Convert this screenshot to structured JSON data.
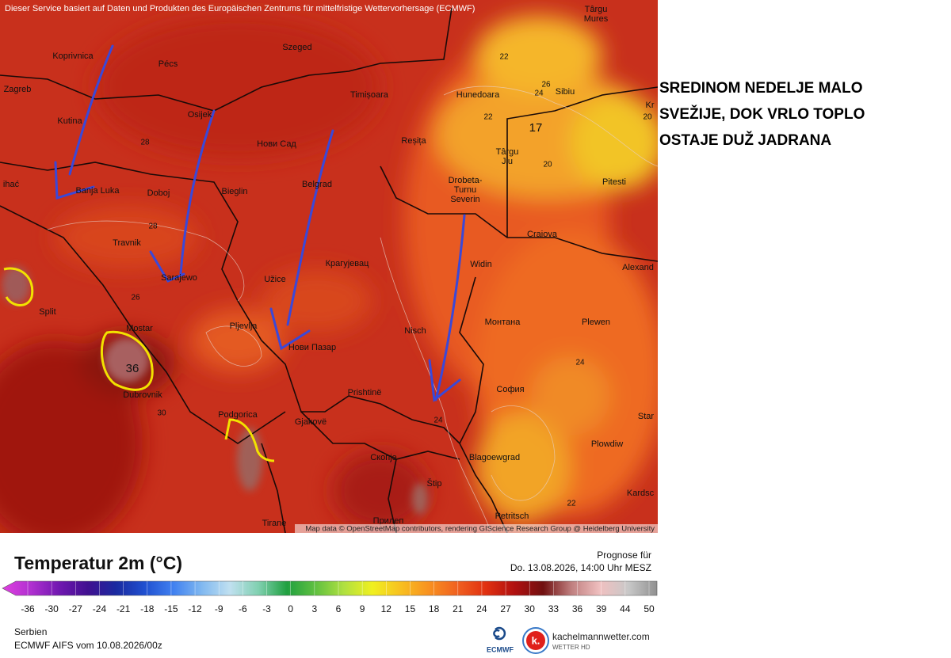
{
  "map": {
    "notice": "Dieser Service basiert auf Daten und Produkten des Europäischen Zentrums für mittelfristige Wettervorhersage (ECMWF)",
    "attribution": "Map data © OpenStreetMap contributors, rendering GIScience Research Group @ Heidelberg University",
    "cities": [
      [
        "Târgu",
        "Mures"
      ],
      [
        "Koprivnica"
      ],
      [
        "Pécs"
      ],
      [
        "Szeged"
      ],
      [
        "Zagreb"
      ],
      [
        "Timișoara"
      ],
      [
        "Hunedoara"
      ],
      [
        "Sibiu"
      ],
      [
        "Kr"
      ],
      [
        "Osijek"
      ],
      [
        "Kutina"
      ],
      [
        "Нови Сад"
      ],
      [
        "Reșița"
      ],
      [
        "Târgu",
        "Jiu"
      ],
      [
        "ihać"
      ],
      [
        "Banja Luka"
      ],
      [
        "Doboj"
      ],
      [
        "Bieglin"
      ],
      [
        "Belgrad"
      ],
      [
        "Drobeta-",
        "Turnu",
        "Severin"
      ],
      [
        "Pitesti"
      ],
      [
        "Craiova"
      ],
      [
        "Travnik"
      ],
      [
        "Sarajewo"
      ],
      [
        "Крагујевац"
      ],
      [
        "Widin"
      ],
      [
        "Alexand"
      ],
      [
        "Užice"
      ],
      [
        "Split"
      ],
      [
        "Mostar"
      ],
      [
        "Pljevlja"
      ],
      [
        "Nisch"
      ],
      [
        "Монтана"
      ],
      [
        "Plewen"
      ],
      [
        "Нови Пазар"
      ],
      [
        "Dubrovnik"
      ],
      [
        "София"
      ],
      [
        "Podgorica"
      ],
      [
        "Prishtinë"
      ],
      [
        "Gjakovë"
      ],
      [
        "Star"
      ],
      [
        "Plowdiw"
      ],
      [
        "Скопје"
      ],
      [
        "Blagoewgrad"
      ],
      [
        "Štip"
      ],
      [
        "Kardsc"
      ],
      [
        "Tirane"
      ],
      [
        "Прилеп"
      ],
      [
        "Petritsch"
      ]
    ],
    "contour_labels": [
      22,
      26,
      24,
      22,
      17,
      20,
      20,
      28,
      28,
      26,
      36,
      30,
      24,
      24,
      22
    ]
  },
  "annotation": [
    "SREDINOM NEDELJE MALO",
    "SVEŽIJE, DOK VRLO TOPLO",
    "OSTAJE DUŽ JADRANA"
  ],
  "legend": {
    "title": "Temperatur 2m (°C)",
    "ticks": [
      -36,
      -30,
      -27,
      -24,
      -21,
      -18,
      -15,
      -12,
      -9,
      -6,
      -3,
      0,
      3,
      6,
      9,
      12,
      15,
      18,
      21,
      24,
      27,
      30,
      33,
      36,
      39,
      44,
      50
    ],
    "colors": [
      "#e040e0",
      "#b030d0",
      "#7018b0",
      "#401090",
      "#1a2aa0",
      "#2050d0",
      "#4080f0",
      "#80b8f0",
      "#c0e0f0",
      "#80d0b0",
      "#20a040",
      "#60c040",
      "#b0e040",
      "#f0f020",
      "#f8c020",
      "#f89020",
      "#f06020",
      "#e03010",
      "#b01010",
      "#701010",
      "#c08080",
      "#f0c0c0",
      "#c8c8c8",
      "#909090"
    ]
  },
  "forecast": {
    "label": "Prognose für",
    "datetime": "Do. 13.08.2026, 14:00 Uhr MESZ"
  },
  "footer": {
    "region": "Serbien",
    "model": "ECMWF AIFS vom 10.08.2026/00z",
    "ecmwf": "ECMWF",
    "logo": "k.",
    "brand": "kachelmannwetter.com",
    "brand_sub": "WETTER HD"
  }
}
